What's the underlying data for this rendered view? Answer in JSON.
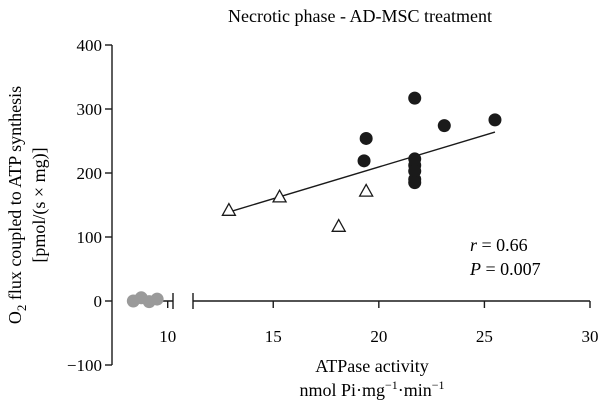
{
  "chart_data": {
    "type": "scatter",
    "title": "Necrotic phase - AD-MSC treatment",
    "xlabel_line1": "ATPase activity",
    "xlabel_line2_prefix": "nmol Pi·mg",
    "xlabel_line2_mid": "·min",
    "xlabel_exp": "−1",
    "ylabel_line1_sub": "2",
    "ylabel_line1_prefix": "O",
    "ylabel_line1_rest": " flux coupled to ATP synthesis",
    "ylabel_line2": "[pmol/(s × mg)]",
    "ylim": [
      -100,
      400
    ],
    "yticks": [
      -100,
      0,
      100,
      200,
      300,
      400
    ],
    "ytick_labels": [
      "−100",
      "0",
      "100",
      "200",
      "300",
      "400"
    ],
    "x_segments": [
      {
        "xlim": [
          8.5,
          10.2
        ],
        "ticks": [
          10
        ],
        "tick_labels": [
          "10"
        ]
      },
      {
        "xlim": [
          11.2,
          30
        ],
        "ticks": [
          15,
          20,
          25,
          30
        ],
        "tick_labels": [
          "15",
          "20",
          "25",
          "30"
        ]
      }
    ],
    "series": [
      {
        "marker": "filled-circle",
        "color": "#1a1a1a",
        "points": [
          [
            19.4,
            254
          ],
          [
            19.3,
            219
          ],
          [
            21.7,
            317
          ],
          [
            21.7,
            222
          ],
          [
            21.7,
            212
          ],
          [
            21.7,
            203
          ],
          [
            21.7,
            190
          ],
          [
            21.7,
            185
          ],
          [
            23.1,
            274
          ],
          [
            25.5,
            283
          ]
        ]
      },
      {
        "marker": "open-triangle",
        "color": "#1a1a1a",
        "points": [
          [
            12.9,
            142
          ],
          [
            15.3,
            163
          ],
          [
            18.1,
            117
          ],
          [
            19.4,
            172
          ]
        ]
      },
      {
        "marker": "grey-circle",
        "color": "#9a9a9a",
        "points": [
          [
            8.7,
            0
          ],
          [
            9.0,
            5
          ],
          [
            9.3,
            -1
          ],
          [
            9.6,
            3
          ]
        ]
      }
    ],
    "fit_line": {
      "x": [
        12.9,
        25.5
      ],
      "y": [
        139,
        264
      ]
    },
    "annotations": {
      "r_label": "r",
      "r_value": " = 0.66",
      "p_label": "P",
      "p_value": " = 0.007"
    }
  }
}
